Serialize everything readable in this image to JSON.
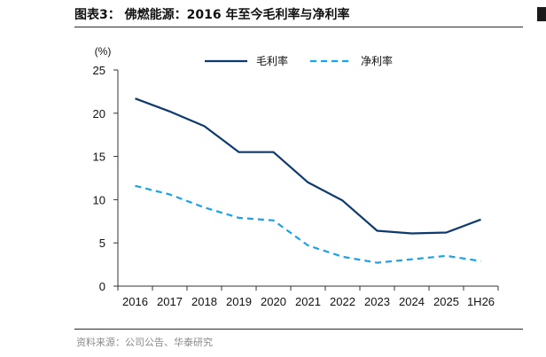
{
  "header": {
    "title": "图表3：  佛燃能源：2016 年至今毛利率与净利率"
  },
  "footer": {
    "source": "资料来源：公司公告、华泰研究"
  },
  "chart_data": {
    "type": "line",
    "title": "",
    "ylabel": "(%)",
    "xlabel": "",
    "ylim": [
      0,
      25
    ],
    "yticks": [
      0,
      5,
      10,
      15,
      20,
      25
    ],
    "categories": [
      "2016",
      "2017",
      "2018",
      "2019",
      "2020",
      "2021",
      "2022",
      "2023",
      "2024",
      "2025",
      "1H26"
    ],
    "legend_position": "top-center",
    "grid": false,
    "series": [
      {
        "name": "毛利率",
        "color": "#0e3a6e",
        "style": "solid",
        "values": [
          21.7,
          20.2,
          18.5,
          15.5,
          15.5,
          12.0,
          9.9,
          6.4,
          6.1,
          6.2,
          7.7
        ]
      },
      {
        "name": "净利率",
        "color": "#1aa3e8",
        "style": "dashed",
        "values": [
          11.6,
          10.6,
          9.1,
          7.9,
          7.6,
          4.7,
          3.4,
          2.7,
          3.1,
          3.5,
          2.9
        ]
      }
    ]
  }
}
